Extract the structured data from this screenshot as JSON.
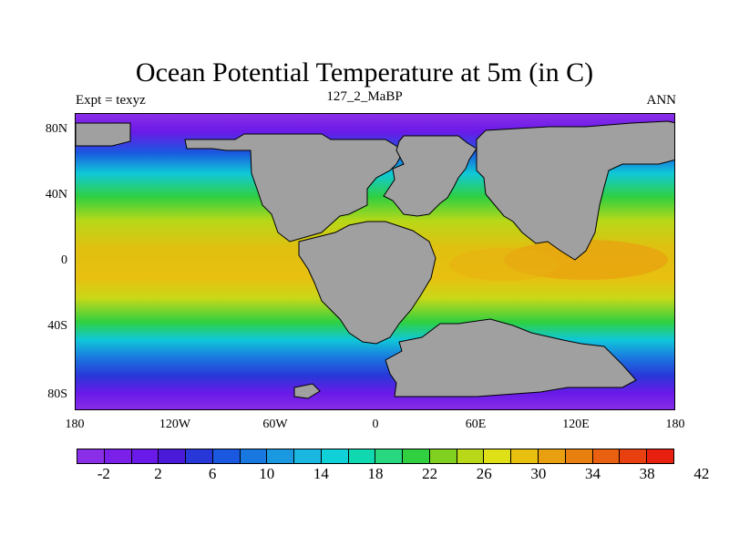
{
  "title": "Ocean Potential Temperature at 5m (in C)",
  "subtitle_left": "Expt = texyz",
  "subtitle_center": "127_2_MaBP",
  "subtitle_right": "ANN",
  "lat_labels": [
    "80N",
    "40N",
    "0",
    "40S",
    "80S"
  ],
  "lon_labels": [
    "180",
    "120W",
    "60W",
    "0",
    "60E",
    "120E",
    "180"
  ],
  "colorbar": {
    "labels": [
      "-2",
      "2",
      "6",
      "10",
      "14",
      "18",
      "22",
      "26",
      "30",
      "34",
      "38",
      "42"
    ],
    "colors": [
      "#8a2ee8",
      "#7a20e8",
      "#6a1ae8",
      "#4a1ad8",
      "#2838d8",
      "#1a58e0",
      "#1878e0",
      "#1a98e0",
      "#1ab8e0",
      "#10d0d8",
      "#10d8b0",
      "#28d880",
      "#30d040",
      "#80d020",
      "#b8d818",
      "#e0e018",
      "#e8c010",
      "#e8a010",
      "#e88010",
      "#e86010",
      "#e84010",
      "#e82010"
    ]
  },
  "land_color": "#a0a0a0"
}
